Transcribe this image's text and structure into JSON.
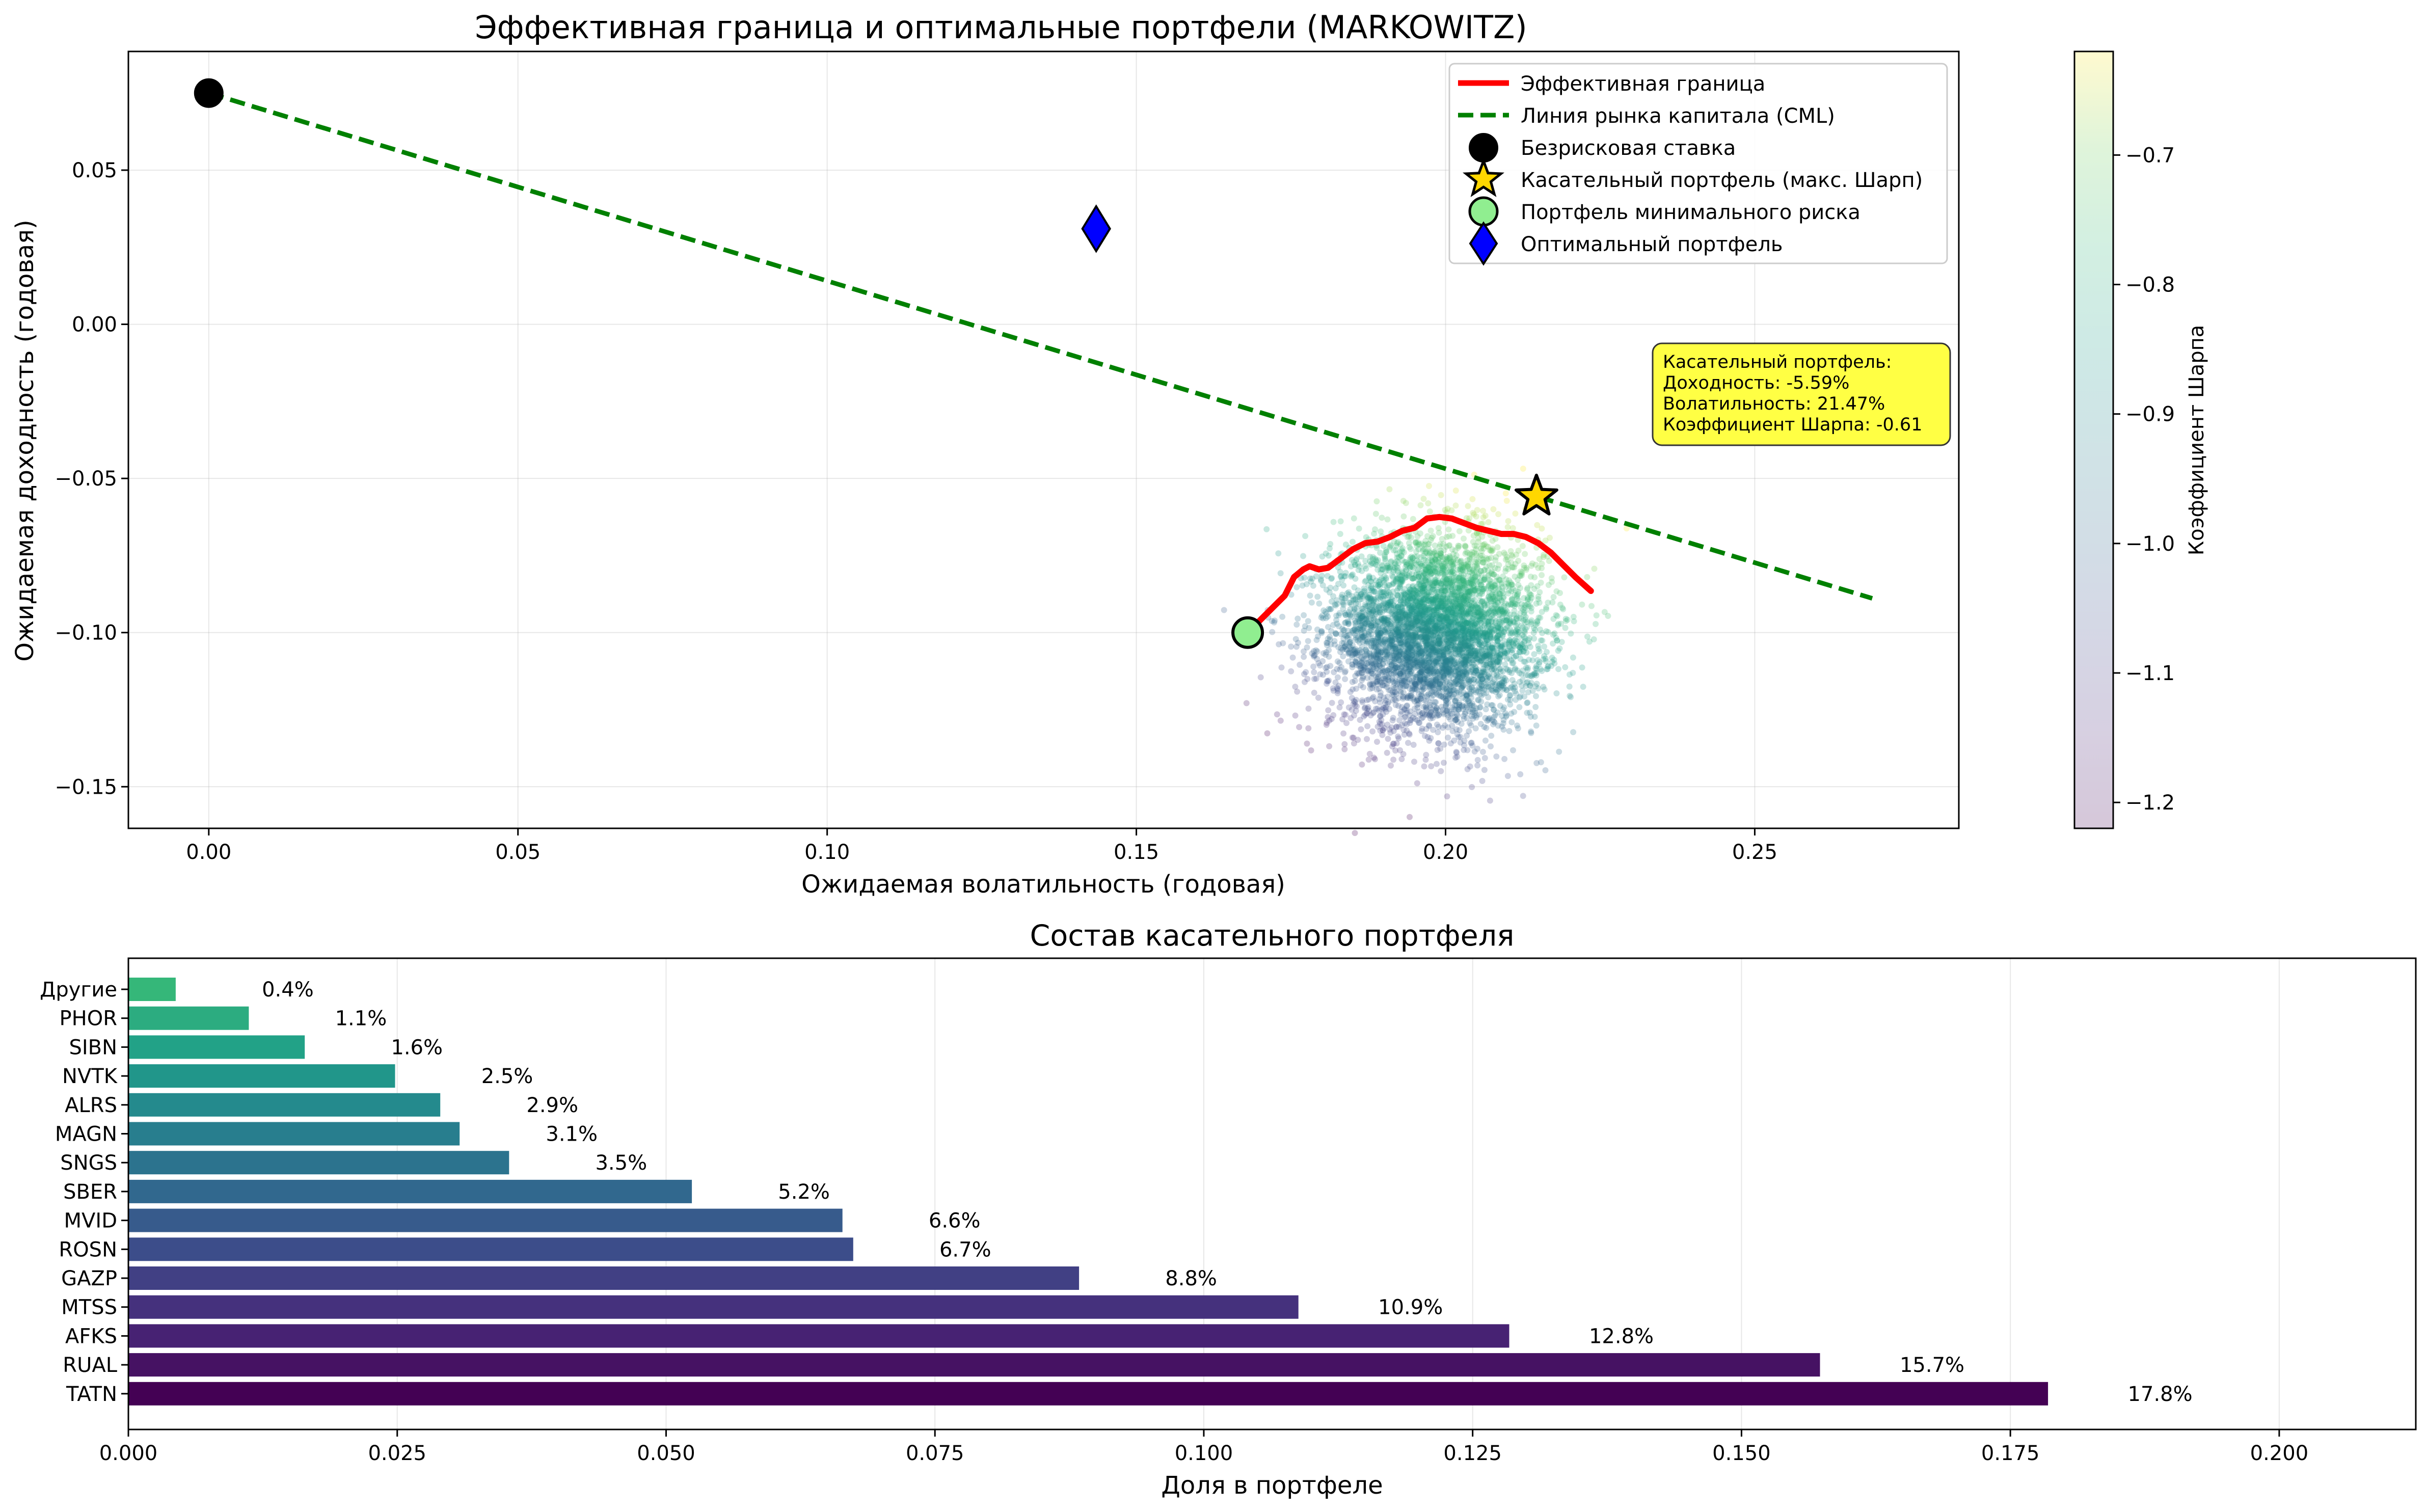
{
  "chart_data": [
    {
      "type": "scatter",
      "title": "Эффективная граница и оптимальные портфели (MARKOWITZ)",
      "xlabel": "Ожидаемая волатильность (годовая)",
      "ylabel": "Ожидаемая доходность (годовая)",
      "xlim": [
        -0.013,
        0.283
      ],
      "ylim": [
        -0.1635,
        0.0885
      ],
      "xticks": [
        "0.00",
        "0.05",
        "0.10",
        "0.15",
        "0.20",
        "0.25"
      ],
      "xtick_values": [
        0,
        0.05,
        0.1,
        0.15,
        0.2,
        0.25
      ],
      "yticks": [
        "−0.15",
        "−0.10",
        "−0.05",
        "0.00",
        "0.05"
      ],
      "ytick_values": [
        -0.15,
        -0.1,
        -0.05,
        0,
        0.05
      ],
      "grid": true,
      "legend_position": "top-right",
      "series": [
        {
          "name": "Эффективная граница",
          "kind": "line",
          "color": "#ff0000",
          "x": [
            0.168,
            0.171,
            0.174,
            0.1755,
            0.177,
            0.178,
            0.1795,
            0.181,
            0.183,
            0.185,
            0.187,
            0.189,
            0.191,
            0.193,
            0.195,
            0.197,
            0.199,
            0.201,
            0.203,
            0.205,
            0.207,
            0.209,
            0.211,
            0.213,
            0.215,
            0.217,
            0.219,
            0.221,
            0.2235
          ],
          "y": [
            -0.1,
            -0.094,
            -0.088,
            -0.082,
            -0.0795,
            -0.0785,
            -0.0795,
            -0.079,
            -0.076,
            -0.073,
            -0.071,
            -0.0705,
            -0.069,
            -0.067,
            -0.066,
            -0.063,
            -0.0625,
            -0.063,
            -0.0645,
            -0.066,
            -0.067,
            -0.068,
            -0.068,
            -0.069,
            -0.071,
            -0.074,
            -0.078,
            -0.082,
            -0.0865
          ]
        },
        {
          "name": "Линия рынка капитала (CML)",
          "kind": "dashed-line",
          "color": "#008000",
          "x": [
            0,
            0.269
          ],
          "y": [
            0.075,
            -0.0889
          ]
        },
        {
          "name": "Безрисковая ставка",
          "kind": "marker-circle",
          "color": "#000000",
          "x": [
            0
          ],
          "y": [
            0.075
          ]
        },
        {
          "name": "Касательный портфель (макс. Шарп)",
          "kind": "marker-star",
          "color": "#ffd700",
          "x": [
            0.2147
          ],
          "y": [
            -0.0559
          ]
        },
        {
          "name": "Портфель минимального риска",
          "kind": "marker-circle",
          "color": "#90ee90",
          "x": [
            0.168
          ],
          "y": [
            -0.1
          ]
        },
        {
          "name": "Оптимальный портфель",
          "kind": "marker-diamond",
          "color": "#0000ff",
          "x": [
            0.1435
          ],
          "y": [
            0.031
          ]
        }
      ],
      "random_portfolios": {
        "count": 5000,
        "volatility_mean": 0.1985,
        "volatility_sd": 0.0085,
        "return_mean": -0.1,
        "return_sd": 0.0155,
        "colormap": "viridis",
        "alpha": 0.25
      },
      "annotation": {
        "lines": [
          "Касательный портфель:",
          "Доходность: -5.59%",
          "Волатильность: 21.47%",
          "Коэффициент Шарпа: -0.61"
        ],
        "background": "#ffff44",
        "position": "right, below legend"
      },
      "colorbar": {
        "label": "Коэффициент Шарпа",
        "range": [
          -1.22,
          -0.62
        ],
        "ticks": [
          "−1.2",
          "−1.1",
          "−1.0",
          "−0.9",
          "−0.8",
          "−0.7"
        ],
        "tick_values": [
          -1.2,
          -1.1,
          -1.0,
          -0.9,
          -0.8,
          -0.7
        ],
        "colormap": "viridis"
      }
    },
    {
      "type": "bar",
      "orientation": "horizontal",
      "title": "Состав касательного портфеля",
      "xlabel": "Доля в портфеле",
      "ylabel": "",
      "xlim": [
        0,
        0.2127
      ],
      "xticks": [
        "0.000",
        "0.025",
        "0.050",
        "0.075",
        "0.100",
        "0.125",
        "0.150",
        "0.175",
        "0.200"
      ],
      "xtick_values": [
        0,
        0.025,
        0.05,
        0.075,
        0.1,
        0.125,
        0.15,
        0.175,
        0.2
      ],
      "grid": true,
      "colormap": "viridis",
      "categories": [
        "TATN",
        "RUAL",
        "AFKS",
        "MTSS",
        "GAZP",
        "ROSN",
        "MVID",
        "SBER",
        "SNGS",
        "MAGN",
        "ALRS",
        "NVTK",
        "SIBN",
        "PHOR",
        "Другие"
      ],
      "values": [
        0.1785,
        0.1573,
        0.1284,
        0.1088,
        0.0884,
        0.0674,
        0.0664,
        0.0524,
        0.0354,
        0.0308,
        0.029,
        0.0248,
        0.0164,
        0.0112,
        0.0044
      ],
      "value_labels": [
        "17.8%",
        "15.7%",
        "12.8%",
        "10.9%",
        "8.8%",
        "6.7%",
        "6.6%",
        "5.2%",
        "3.5%",
        "3.1%",
        "2.9%",
        "2.5%",
        "1.6%",
        "1.1%",
        "0.4%"
      ]
    }
  ]
}
